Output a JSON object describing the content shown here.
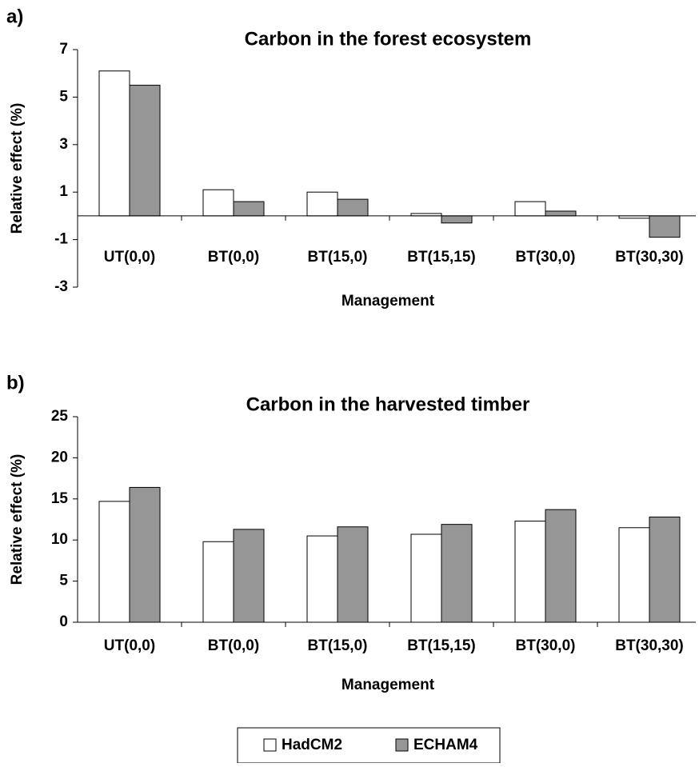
{
  "chart_data": [
    {
      "type": "bar",
      "label": "a)",
      "title": "Carbon in the forest ecosystem",
      "x_label": "Management",
      "y_label": "Relative effect (%)",
      "categories": [
        "UT(0,0)",
        "BT(0,0)",
        "BT(15,0)",
        "BT(15,15)",
        "BT(30,0)",
        "BT(30,30)"
      ],
      "series": [
        {
          "name": "HadCM2",
          "color": "#ffffff",
          "values": [
            6.1,
            1.1,
            1.0,
            0.1,
            0.6,
            -0.1
          ]
        },
        {
          "name": "ECHAM4",
          "color": "#969696",
          "values": [
            5.5,
            0.6,
            0.7,
            -0.3,
            0.2,
            -0.9
          ]
        }
      ],
      "ylim": [
        -3,
        7
      ],
      "yticks": [
        -3,
        -1,
        1,
        3,
        5,
        7
      ]
    },
    {
      "type": "bar",
      "label": "b)",
      "title": "Carbon in the harvested timber",
      "x_label": "Management",
      "y_label": "Relative effect (%)",
      "categories": [
        "UT(0,0)",
        "BT(0,0)",
        "BT(15,0)",
        "BT(15,15)",
        "BT(30,0)",
        "BT(30,30)"
      ],
      "series": [
        {
          "color": "#ffffff",
          "values": [
            14.7,
            9.8,
            10.5,
            10.7,
            12.3,
            11.5
          ]
        },
        {
          "color": "#969696",
          "values": [
            16.4,
            11.3,
            11.6,
            11.9,
            13.7,
            12.8
          ]
        }
      ],
      "ylim": [
        0,
        25
      ],
      "yticks": [
        0,
        5,
        10,
        15,
        20,
        25
      ]
    }
  ]
}
